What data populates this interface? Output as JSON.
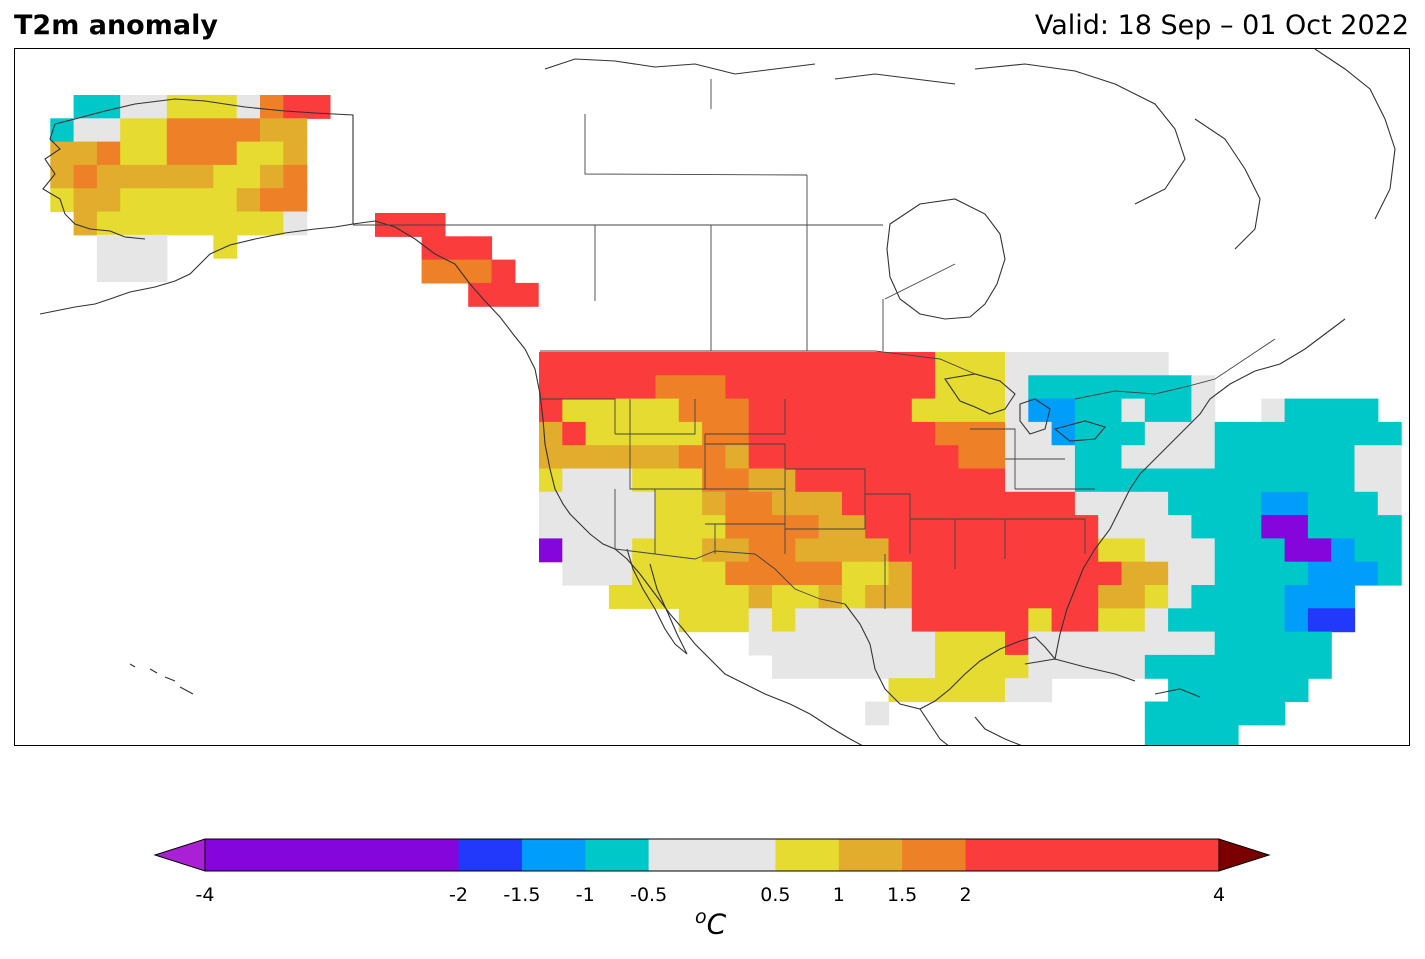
{
  "title": "T2m anomaly",
  "valid": "Valid: 18 Sep – 01 Oct 2022",
  "colorbar": {
    "unit_base": "C",
    "unit_sup": "o",
    "ticks": [
      "-4",
      "-2",
      "-1.5",
      "-1",
      "-0.5",
      "0.5",
      "1",
      "1.5",
      "2",
      "4"
    ],
    "bounds": [
      -4,
      -2,
      -1.5,
      -1,
      -0.5,
      0.5,
      1,
      1.5,
      2,
      4
    ],
    "colors": [
      "#8506dd",
      "#2238fb",
      "#009dfb",
      "#00c8c8",
      "#e6e6e6",
      "#e6db30",
      "#e2ad2c",
      "#ee8028",
      "#fa3c3c"
    ],
    "under_color": "#aa20d4",
    "over_color": "#7a0000"
  },
  "map_data": {
    "region": "North America",
    "palette": {
      "P": "#8506dd",
      "B": "#2238fb",
      "L": "#009dfb",
      "T": "#00c8c8",
      "W": "#e6e6e6",
      "Y": "#e6db30",
      "G": "#e2ad2c",
      "O": "#ee8028",
      "R": "#fa3c3c"
    },
    "alaska_grid": [
      "..TTWWYYYWORR",
      ".TWWYYOOOOGG.",
      ".GGOYYOOOYYG.",
      ".GOGGGGGYYGO.",
      ".YGGYYYYYGOO.",
      "..GYYYYYYYYW.",
      "...WWW..Y....",
      "...WWW......."
    ],
    "bc_grid": [
      "RRR....",
      "..RRR..",
      "..OOOR.",
      "....RRR"
    ],
    "conus_grid": [
      "RRRRRRRRRRRRRRRRRYYYWWWWWWW.........",
      "RRRRROOORRRRRRRRRYYYWTTTTTTTW.......",
      "RYYYYYOOORRRRRRRYYYYWLLTTWTTW..WTTTT",
      "GRYYYYYOORRRRRRRROOOWWLTTTWWWTTTTTTTT",
      "GGGGGGOOGRRRRRRRRROOWWWTTWWWWTTTTTTWW",
      "YWWWYYYOOGGRRRRRRRRRWWWTTTTTTTTTTTTWW",
      "WWWWWYYGOOGGGRRRRRRRRRRWWWWTTTTLLTTTW",
      "WWWWWYYYOOOOGGRRRRRRRRRRWWWWTTTPPTTTT",
      "PWWWYYYGGOOGGGGRRRRRRRRRYYWWWTTTPPLTT",
      ".WWWYYYYOOOOOYYGRRRRRRRRRGGWWTTTTLLLT",
      "...YYYYYYGYYGYGGRRRRRRRRGGYWTTTTLLL..",
      "......YYYWYWWWWWRRRRRYRRYYWTTTTTLBB..",
      ".........WWWWWWWWYYYRWWWWWWWWTTTTT...",
      "..........WWWWWWWYYYYWWWWWTTTTTTTT...",
      "...............YYYYYWW.....TTTTTT....",
      "..............W...........TTTTTT.....",
      "..........................TTTT......."
    ]
  }
}
